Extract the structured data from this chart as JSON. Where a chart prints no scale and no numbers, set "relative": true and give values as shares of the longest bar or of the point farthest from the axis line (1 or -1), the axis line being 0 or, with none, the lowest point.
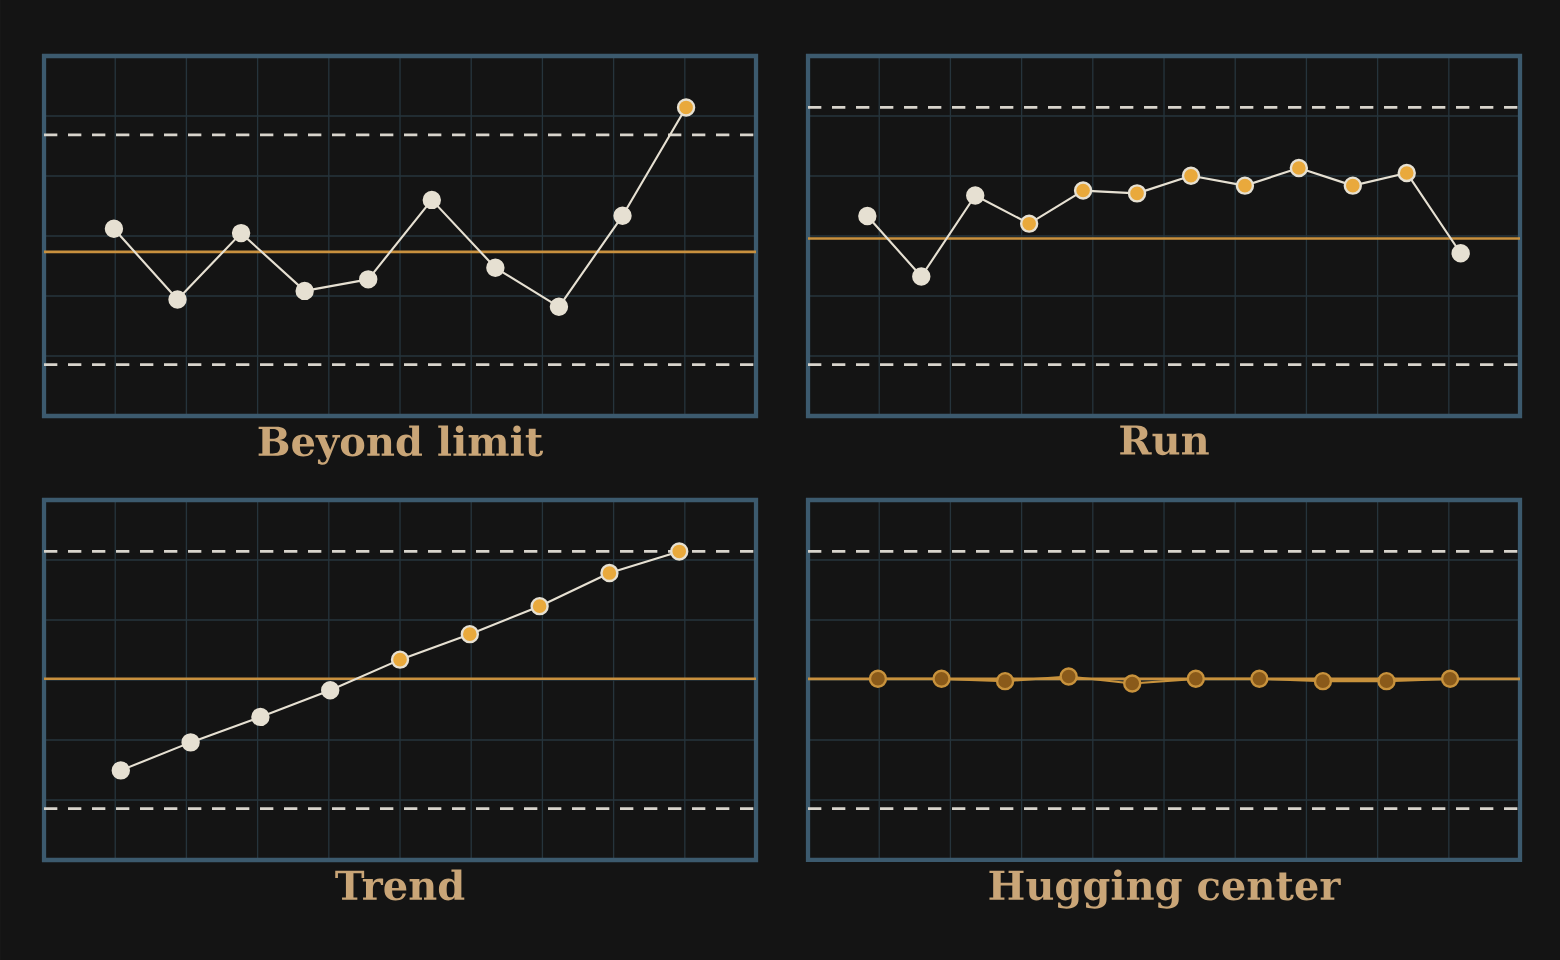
{
  "chart_data": [
    {
      "type": "line",
      "title": "Beyond limit",
      "relative": true,
      "grid": true,
      "marker": "circle",
      "categories": [
        null,
        null,
        null,
        null,
        null,
        null,
        null,
        null,
        null,
        null
      ],
      "series": [
        {
          "color": "#e6e0d2",
          "colors": [
            "#e6e0d2",
            "#e6e0d2",
            "#e6e0d2",
            "#e6e0d2",
            "#e6e0d2",
            "#e6e0d2",
            "#e6e0d2",
            "#e6e0d2",
            "#e6e0d2",
            "#e9a93c"
          ],
          "values": [
            0.16,
            -0.33,
            0.13,
            -0.27,
            -0.19,
            0.36,
            -0.11,
            -0.38,
            0.25,
            1
          ]
        }
      ],
      "ref_lines": [
        {
          "axis": "y",
          "value": 0.81,
          "color": "#d8d4cc",
          "line_style": "dashed"
        },
        {
          "axis": "y",
          "value": 0,
          "color": "#c8903e",
          "line_style": "solid"
        },
        {
          "axis": "y",
          "value": -0.78,
          "color": "#d8d4cc",
          "line_style": "dashed"
        }
      ]
    },
    {
      "type": "line",
      "title": "Run",
      "relative": true,
      "grid": true,
      "marker": "circle",
      "categories": [
        null,
        null,
        null,
        null,
        null,
        null,
        null,
        null,
        null,
        null,
        null,
        null
      ],
      "series": [
        {
          "color": "#e6e0d2",
          "colors": [
            "#e6e0d2",
            "#e6e0d2",
            "#e6e0d2",
            "#e9a93c",
            "#e9a93c",
            "#e9a93c",
            "#e9a93c",
            "#e9a93c",
            "#e9a93c",
            "#e9a93c",
            "#e9a93c",
            "#e6e0d2"
          ],
          "values": [
            0.32,
            -0.54,
            0.61,
            0.21,
            0.68,
            0.64,
            0.89,
            0.75,
            1,
            0.75,
            0.93,
            -0.21
          ]
        }
      ],
      "ref_lines": [
        {
          "axis": "y",
          "value": 1.86,
          "color": "#d8d4cc",
          "line_style": "dashed"
        },
        {
          "axis": "y",
          "value": 0,
          "color": "#c8903e",
          "line_style": "solid"
        },
        {
          "axis": "y",
          "value": -1.79,
          "color": "#d8d4cc",
          "line_style": "dashed"
        }
      ]
    },
    {
      "type": "line",
      "title": "Trend",
      "relative": true,
      "grid": true,
      "marker": "circle",
      "categories": [
        null,
        null,
        null,
        null,
        null,
        null,
        null,
        null,
        null
      ],
      "series": [
        {
          "color": "#e6e0d2",
          "colors": [
            "#e6e0d2",
            "#e6e0d2",
            "#e6e0d2",
            "#e6e0d2",
            "#e9a93c",
            "#e9a93c",
            "#e9a93c",
            "#e9a93c",
            "#e9a93c"
          ],
          "values": [
            -0.72,
            -0.5,
            -0.3,
            -0.09,
            0.15,
            0.35,
            0.57,
            0.83,
            1
          ]
        }
      ],
      "ref_lines": [
        {
          "axis": "y",
          "value": 1,
          "color": "#d8d4cc",
          "line_style": "dashed"
        },
        {
          "axis": "y",
          "value": 0,
          "color": "#c8903e",
          "line_style": "solid"
        },
        {
          "axis": "y",
          "value": -1.02,
          "color": "#d8d4cc",
          "line_style": "dashed"
        }
      ]
    },
    {
      "type": "line",
      "title": "Hugging center",
      "relative": true,
      "grid": true,
      "marker": "circle",
      "categories": [
        null,
        null,
        null,
        null,
        null,
        null,
        null,
        null,
        null,
        null
      ],
      "series": [
        {
          "color": "#c8923c",
          "colors": [
            "#8a5a1a",
            "#8a5a1a",
            "#8a5a1a",
            "#8a5a1a",
            "#8a5a1a",
            "#8a5a1a",
            "#8a5a1a",
            "#8a5a1a",
            "#8a5a1a",
            "#8a5a1a"
          ],
          "values": [
            0,
            0,
            -0.5,
            0.5,
            -1,
            0,
            0,
            -0.5,
            -0.5,
            0
          ]
        }
      ],
      "ref_lines": [
        {
          "axis": "y",
          "value": 27,
          "color": "#d8d4cc",
          "line_style": "dashed"
        },
        {
          "axis": "y",
          "value": 0,
          "color": "#c8903e",
          "line_style": "solid"
        },
        {
          "axis": "y",
          "value": -27.5,
          "color": "#d8d4cc",
          "line_style": "dashed"
        }
      ]
    }
  ]
}
